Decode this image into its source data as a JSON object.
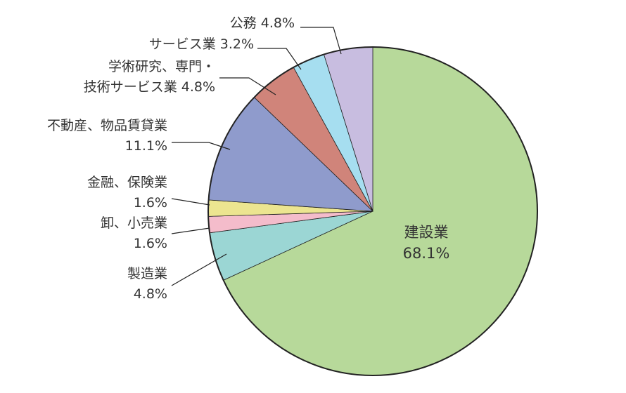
{
  "chart_data": {
    "type": "pie",
    "unit": "%",
    "slices": [
      {
        "label": "建設業",
        "label_lines": [
          "建設業",
          "68.1%"
        ],
        "value": 68.1,
        "color": "#b7d99a"
      },
      {
        "label": "製造業",
        "label_lines": [
          "製造業",
          "4.8%"
        ],
        "value": 4.8,
        "color": "#9bd6d4"
      },
      {
        "label": "卸、小売業",
        "label_lines": [
          "卸、小売業",
          "1.6%"
        ],
        "value": 1.6,
        "color": "#f4bccb"
      },
      {
        "label": "金融、保険業",
        "label_lines": [
          "金融、保険業",
          "1.6%"
        ],
        "value": 1.6,
        "color": "#ece590"
      },
      {
        "label": "不動産、物品賃貸業",
        "label_lines": [
          "不動産、物品賃貸業",
          "11.1%"
        ],
        "value": 11.1,
        "color": "#8f9bcc"
      },
      {
        "label": "学術研究、専門・技術サービス業",
        "label_lines": [
          "学術研究、専門・",
          "技術サービス業 4.8%"
        ],
        "value": 4.8,
        "color": "#d0847a"
      },
      {
        "label": "サービス業",
        "label_lines": [
          "サービス業 3.2%"
        ],
        "value": 3.2,
        "color": "#a6def0"
      },
      {
        "label": "公務",
        "label_lines": [
          "公務 4.8%"
        ],
        "value": 4.8,
        "color": "#c8bde0"
      }
    ]
  }
}
